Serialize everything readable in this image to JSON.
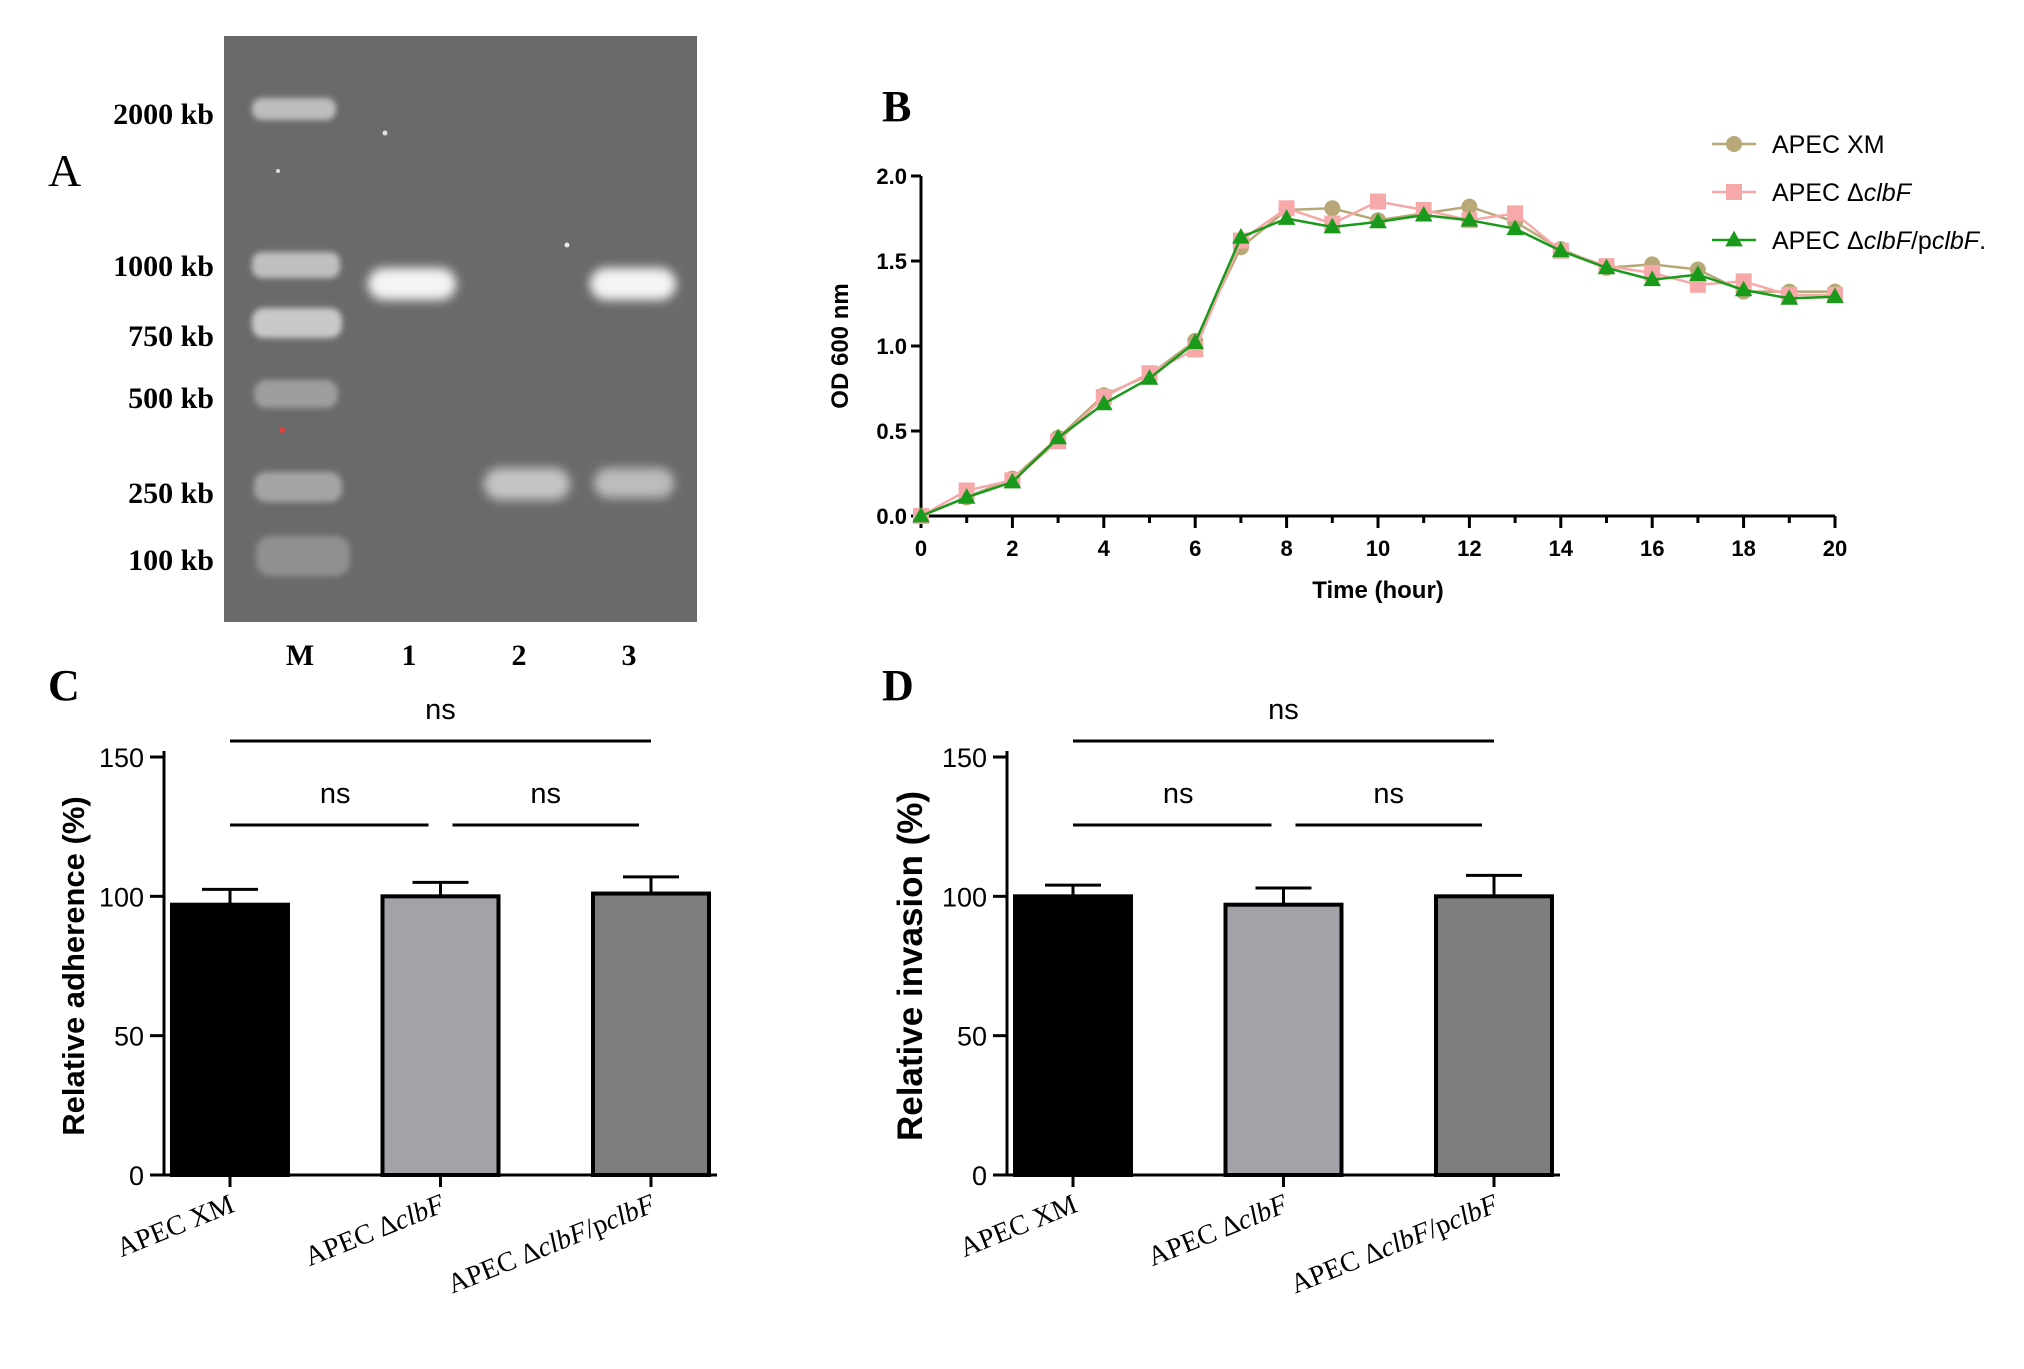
{
  "panel_labels": {
    "a": "A",
    "b": "B",
    "c": "C",
    "d": "D"
  },
  "gel": {
    "ladder_labels": [
      "2000 kb",
      "1000 kb",
      "750 kb",
      "500 kb",
      "250 kb",
      "100 kb"
    ],
    "lane_labels": [
      "M",
      "1",
      "2",
      "3"
    ],
    "background_color": "#6a6a6a",
    "band_color": "#f4f4f4"
  },
  "chart_data": [
    {
      "type": "line",
      "panel": "B",
      "title": "",
      "xlabel": "Time (hour)",
      "ylabel": "OD 600 nm",
      "xlim": [
        0,
        20
      ],
      "ylim": [
        0,
        2.0
      ],
      "xticks": [
        0,
        2,
        4,
        6,
        8,
        10,
        12,
        14,
        16,
        18,
        20
      ],
      "yticks": [
        0.0,
        0.5,
        1.0,
        1.5,
        2.0
      ],
      "x": [
        0,
        1,
        2,
        3,
        4,
        5,
        6,
        7,
        8,
        9,
        10,
        11,
        12,
        13,
        14,
        15,
        16,
        17,
        18,
        19,
        20
      ],
      "legend_position": "top-right",
      "series": [
        {
          "name": "APEC XM",
          "legend_prefix": "APEC ",
          "legend_italic": "",
          "legend_suffix": "XM",
          "marker": "circle",
          "color": "#b8a878",
          "values": [
            0.0,
            0.11,
            0.22,
            0.46,
            0.71,
            0.83,
            1.03,
            1.58,
            1.8,
            1.81,
            1.74,
            1.78,
            1.82,
            1.73,
            1.57,
            1.46,
            1.48,
            1.45,
            1.32,
            1.32,
            1.32
          ]
        },
        {
          "name": "APEC ΔclbF",
          "legend_prefix": "APEC Δ",
          "legend_italic": "clbF",
          "legend_suffix": "",
          "marker": "square",
          "color": "#f7a8a8",
          "values": [
            0.0,
            0.15,
            0.21,
            0.44,
            0.7,
            0.84,
            0.98,
            1.62,
            1.81,
            1.72,
            1.85,
            1.8,
            1.74,
            1.78,
            1.56,
            1.47,
            1.43,
            1.36,
            1.38,
            1.3,
            1.3
          ]
        },
        {
          "name": "APEC ΔclbF/pclbF.",
          "legend_prefix": "APEC Δ",
          "legend_italic": "clbF",
          "legend_suffix": "/p",
          "legend_italic2": "clbF",
          "legend_suffix2": ".",
          "marker": "triangle",
          "color": "#1a9a1a",
          "values": [
            0.0,
            0.11,
            0.2,
            0.46,
            0.66,
            0.81,
            1.02,
            1.64,
            1.75,
            1.7,
            1.73,
            1.77,
            1.74,
            1.69,
            1.56,
            1.46,
            1.39,
            1.42,
            1.33,
            1.28,
            1.29
          ]
        }
      ]
    },
    {
      "type": "bar",
      "panel": "C",
      "title": "",
      "xlabel": "",
      "ylabel": "Relative adherence (%)",
      "ylim": [
        0,
        150
      ],
      "yticks": [
        0,
        50,
        100,
        150
      ],
      "categories": [
        "APEC XM",
        "APEC ΔclbF",
        "APEC ΔclbF/pclbF"
      ],
      "category_parts": [
        {
          "a": "APEC XM",
          "i": "",
          "b": "",
          "i2": ""
        },
        {
          "a": "APEC Δ",
          "i": "clbF",
          "b": "",
          "i2": ""
        },
        {
          "a": "APEC Δ",
          "i": "clbF",
          "b": "/p",
          "i2": "clbF"
        }
      ],
      "values": [
        97,
        100,
        101
      ],
      "errors": [
        5.5,
        5,
        6
      ],
      "bar_colors": [
        "#000000",
        "#a2a2a8",
        "#7e7e7e"
      ],
      "significance": [
        {
          "from": 0,
          "to": 1,
          "label": "ns"
        },
        {
          "from": 1,
          "to": 2,
          "label": "ns"
        },
        {
          "from": 0,
          "to": 2,
          "label": "ns"
        }
      ]
    },
    {
      "type": "bar",
      "panel": "D",
      "title": "",
      "xlabel": "",
      "ylabel": "Relative invasion (%)",
      "ylim": [
        0,
        150
      ],
      "yticks": [
        0,
        50,
        100,
        150
      ],
      "categories": [
        "APEC XM",
        "APEC ΔclbF",
        "APEC ΔclbF/pclbF"
      ],
      "category_parts": [
        {
          "a": "APEC XM",
          "i": "",
          "b": "",
          "i2": ""
        },
        {
          "a": "APEC Δ",
          "i": "clbF",
          "b": "",
          "i2": ""
        },
        {
          "a": "APEC Δ",
          "i": "clbF",
          "b": "/p",
          "i2": "clbF"
        }
      ],
      "values": [
        100,
        97,
        100
      ],
      "errors": [
        4,
        6,
        7.5
      ],
      "bar_colors": [
        "#000000",
        "#a2a2a8",
        "#7e7e7e"
      ],
      "significance": [
        {
          "from": 0,
          "to": 1,
          "label": "ns"
        },
        {
          "from": 1,
          "to": 2,
          "label": "ns"
        },
        {
          "from": 0,
          "to": 2,
          "label": "ns"
        }
      ]
    }
  ]
}
